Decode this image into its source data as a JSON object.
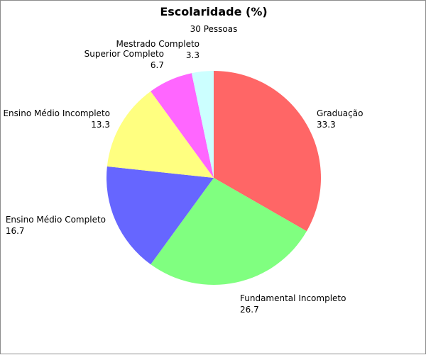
{
  "chart_data": {
    "type": "pie",
    "title": "Escolaridade (%)",
    "subtitle": "30 Pessoas",
    "start_angle_deg": 0,
    "direction": "clockwise",
    "slices": [
      {
        "label": "Graduação",
        "value": 33.3,
        "value_text": "33.3",
        "color": "#ff6666"
      },
      {
        "label": "Fundamental Incompleto",
        "value": 26.7,
        "value_text": "26.7",
        "color": "#80ff80"
      },
      {
        "label": "Ensino Médio Completo",
        "value": 16.7,
        "value_text": "16.7",
        "color": "#6666ff"
      },
      {
        "label": "Ensino Médio Incompleto",
        "value": 13.3,
        "value_text": "13.3",
        "color": "#ffff80"
      },
      {
        "label": "Superior Completo",
        "value": 6.7,
        "value_text": "6.7",
        "color": "#ff66ff"
      },
      {
        "label": "Mestrado Completo",
        "value": 3.3,
        "value_text": "3.3",
        "color": "#ccffff"
      }
    ]
  }
}
